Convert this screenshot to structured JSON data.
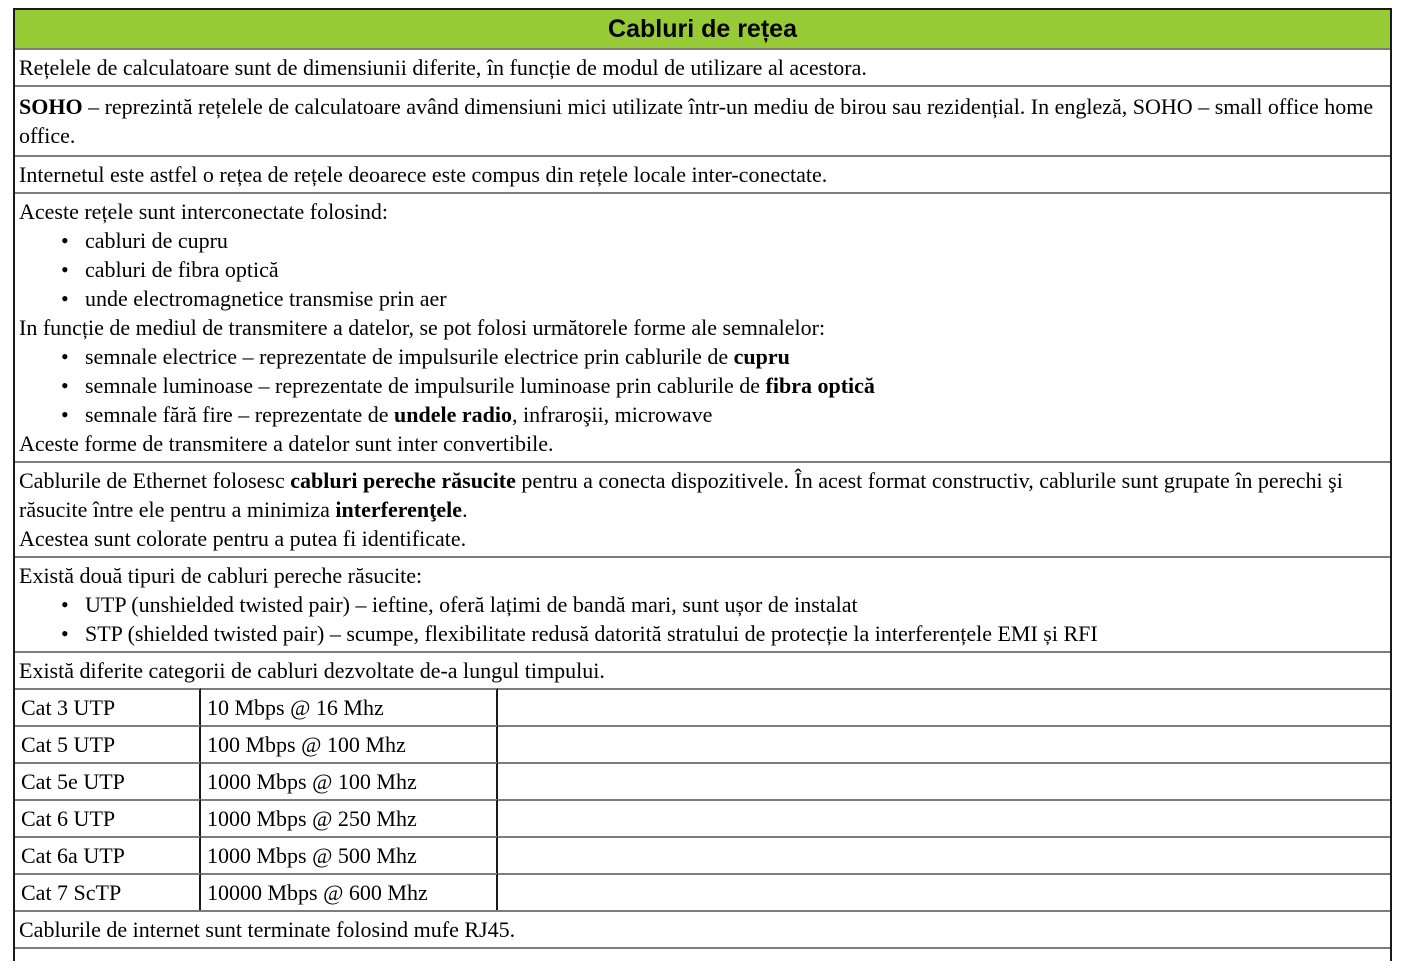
{
  "colors": {
    "header_green": "#97CB35",
    "border_gray": "#7d7d7d",
    "border_dark": "#1a1a1a"
  },
  "header": {
    "title": "Cabluri de rețea"
  },
  "rows": {
    "intro": "Rețelele de calculatoare sunt de dimensiunii diferite, în funcție de modul de utilizare al acestora.",
    "soho": {
      "term": "SOHO",
      "text": " – reprezintă rețelele de calculatoare având dimensiuni mici utilizate într-un mediu de birou sau rezidențial. In engleză, SOHO – small office home office."
    },
    "internet": "Internetul este astfel o rețea de rețele deoarece este compus din rețele locale inter-conectate.",
    "interconnect": {
      "lead1": "Aceste rețele sunt interconectate folosind:",
      "bullets1": [
        "cabluri de cupru",
        "cabluri de fibra optică",
        "unde electromagnetice transmise prin aer"
      ],
      "lead2": "In funcție de mediul de transmitere a datelor, se pot folosi următorele forme ale semnalelor:",
      "bullets2": [
        {
          "pre": "semnale electrice – reprezentate de impulsurile electrice prin cablurile de ",
          "bold": "cupru",
          "post": ""
        },
        {
          "pre": "semnale luminoase – reprezentate de impulsurile luminoase prin cablurile de ",
          "bold": "fibra optică",
          "post": ""
        },
        {
          "pre": "semnale fără fire – reprezentate de ",
          "bold": "undele radio",
          "post": ", infraroşii, microwave"
        }
      ],
      "closing": "Aceste forme de transmitere a datelor sunt inter convertibile."
    },
    "ethernet": {
      "p1_pre": "Cablurile de Ethernet folosesc ",
      "p1_bold1": "cabluri pereche răsucite",
      "p1_mid": " pentru a conecta dispozitivele. În acest format constructiv, cablurile sunt grupate în perechi şi răsucite între ele pentru a minimiza ",
      "p1_bold2": "interferenţele",
      "p1_post": ".",
      "p2": "Acestea sunt colorate pentru a putea fi identificate."
    },
    "twisted_types": {
      "lead": "Există două tipuri de cabluri pereche răsucite:",
      "bullets": [
        "UTP (unshielded twisted pair) – ieftine, oferă lațimi de bandă mari, sunt ușor de instalat",
        "STP (shielded twisted pair) – scumpe, flexibilitate redusă datorită stratului de protecție la interferențele EMI și RFI"
      ]
    },
    "categories_lead": "Există diferite categorii de cabluri dezvoltate de-a lungul timpului.",
    "rj45": "Cablurile de internet sunt terminate folosind mufe RJ45."
  },
  "category_table": {
    "rows": [
      {
        "category": "Cat 3 UTP",
        "spec": "10 Mbps @ 16 Mhz",
        "note": ""
      },
      {
        "category": "Cat 5 UTP",
        "spec": "100 Mbps @ 100 Mhz",
        "note": ""
      },
      {
        "category": "Cat 5e UTP",
        "spec": "1000 Mbps @ 100 Mhz",
        "note": ""
      },
      {
        "category": "Cat 6 UTP",
        "spec": "1000 Mbps @ 250 Mhz",
        "note": ""
      },
      {
        "category": "Cat 6a UTP",
        "spec": "1000 Mbps @ 500 Mhz",
        "note": ""
      },
      {
        "category": "Cat 7 ScTP",
        "spec": "10000 Mbps @ 600 Mhz",
        "note": ""
      }
    ]
  }
}
